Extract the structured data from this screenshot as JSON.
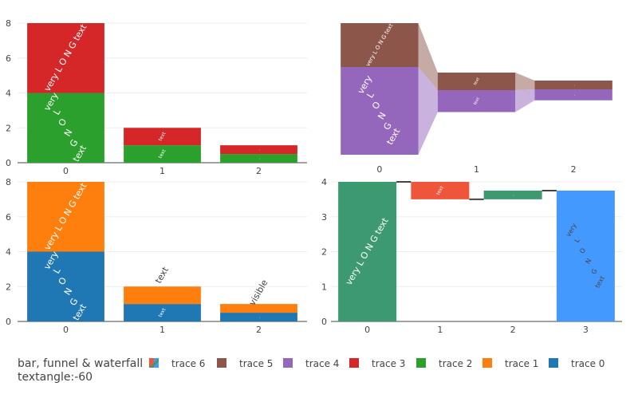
{
  "title_lines": [
    "bar, funnel & waterfall",
    "textangle:-60"
  ],
  "legend": [
    {
      "name": "trace 6",
      "color": "#ef553b",
      "color2": "#3d9970",
      "color3": "#4499ff",
      "diverging": true
    },
    {
      "name": "trace 5",
      "color": "#8c564b"
    },
    {
      "name": "trace 4",
      "color": "#9467bd"
    },
    {
      "name": "trace 3",
      "color": "#d62728"
    },
    {
      "name": "trace 2",
      "color": "#2ca02c"
    },
    {
      "name": "trace 1",
      "color": "#ff7f0e"
    },
    {
      "name": "trace 0",
      "color": "#1f77b4"
    }
  ],
  "chart_data": [
    {
      "type": "bar",
      "barmode": "stack",
      "categories": [
        "0",
        "1",
        "2"
      ],
      "xticks": [
        "0",
        "1",
        "2"
      ],
      "yticks": [
        "0",
        "2",
        "4",
        "6",
        "8"
      ],
      "ylim": [
        0,
        8
      ],
      "textangle": -60,
      "series": [
        {
          "name": "trace 2",
          "color": "#2ca02c",
          "values": [
            4,
            1,
            0.5
          ],
          "text": [
            "very<br>L<br>O<br>N<br>G<br>text",
            "text",
            "."
          ]
        },
        {
          "name": "trace 3",
          "color": "#d62728",
          "values": [
            4,
            1,
            0.5
          ],
          "text": [
            "very L O N G text",
            "text",
            "."
          ]
        }
      ]
    },
    {
      "type": "funnel",
      "categories": [
        "0",
        "1",
        "2"
      ],
      "xticks": [
        "0",
        "1",
        "2"
      ],
      "series": [
        {
          "name": "trace 4",
          "color": "#9467bd",
          "values": [
            4,
            1,
            0.5
          ],
          "text": [
            "very<br>L<br>O<br>N<br>G<br>text",
            "text",
            "."
          ]
        },
        {
          "name": "trace 5",
          "color": "#8c564b",
          "values": [
            2,
            0.8,
            0.4
          ],
          "text": [
            "very L O N G text",
            "text",
            "."
          ]
        }
      ]
    },
    {
      "type": "bar",
      "barmode": "stack",
      "categories": [
        "0",
        "1",
        "2"
      ],
      "xticks": [
        "0",
        "1",
        "2"
      ],
      "yticks": [
        "0",
        "2",
        "4",
        "6",
        "8"
      ],
      "ylim": [
        0,
        8
      ],
      "textangle": -60,
      "series": [
        {
          "name": "trace 0",
          "color": "#1f77b4",
          "values": [
            4,
            1,
            0.5
          ],
          "text": [
            "very<br>L<br>O<br>N<br>G<br>text",
            "text",
            "."
          ]
        },
        {
          "name": "trace 1",
          "color": "#ff7f0e",
          "values": [
            4,
            1,
            0.5
          ],
          "text": [
            "very L O N G text",
            "text",
            "visible"
          ]
        }
      ]
    },
    {
      "type": "waterfall",
      "categories": [
        "0",
        "1",
        "2",
        "3"
      ],
      "xticks": [
        "0",
        "1",
        "2",
        "3"
      ],
      "yticks": [
        "0",
        "1",
        "2",
        "3",
        "4"
      ],
      "ylim": [
        0,
        4
      ],
      "textangle": -60,
      "series": [
        {
          "name": "trace 6",
          "values": [
            4,
            -0.5,
            0.25,
            3.75
          ],
          "measure": [
            "relative",
            "relative",
            "relative",
            "total"
          ],
          "text": [
            "very L O N G text",
            "text",
            ".",
            "very<br>L<br>O<br>N<br>G<br>text"
          ],
          "colors": {
            "increasing": "#3d9970",
            "decreasing": "#ef553b",
            "total": "#4499ff"
          }
        }
      ]
    }
  ]
}
